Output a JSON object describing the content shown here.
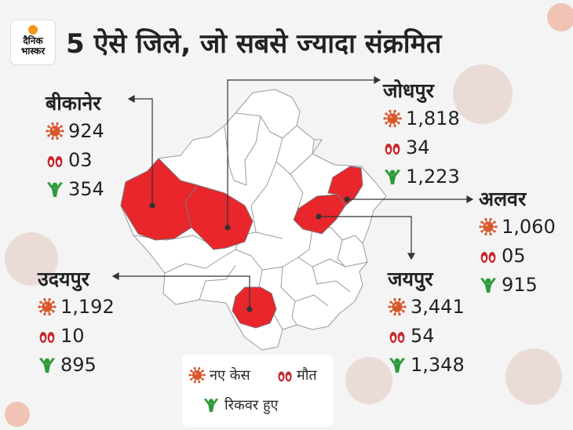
{
  "header": {
    "title": "5 ऐसे जिले, जो सबसे ज्यादा संक्रमित",
    "logo_line1": "दैनिक",
    "logo_line2": "भास्कर"
  },
  "districts": [
    {
      "name": "बीकानेर",
      "cases": "924",
      "deaths": "03",
      "recovered": "354"
    },
    {
      "name": "जोधपुर",
      "cases": "1,818",
      "deaths": "34",
      "recovered": "1,223"
    },
    {
      "name": "अलवर",
      "cases": "1,060",
      "deaths": "05",
      "recovered": "915"
    },
    {
      "name": "उदयपुर",
      "cases": "1,192",
      "deaths": "10",
      "recovered": "895"
    },
    {
      "name": "जयपुर",
      "cases": "3,441",
      "deaths": "54",
      "recovered": "1,348"
    }
  ],
  "legend": {
    "cases": "नए केस",
    "deaths": "मौत",
    "recovered": "रिकवर हुए"
  },
  "colors": {
    "highlight": "#e8262b",
    "virus": "#d9562c",
    "recovered": "#2e9a3a",
    "deaths": "#c8282e"
  },
  "icons": {
    "cases": "virus-icon",
    "deaths": "footprint-icon",
    "recovered": "person-recovered-icon"
  }
}
